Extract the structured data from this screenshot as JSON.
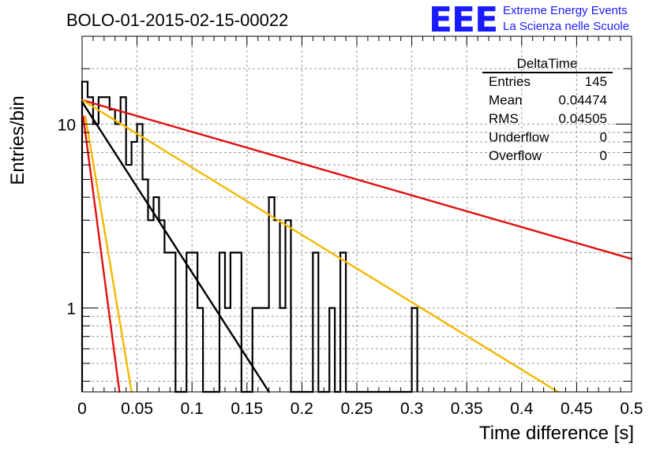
{
  "title": "BOLO-01-2015-02-15-00022",
  "logo": {
    "mark": "EEE",
    "line1": "Extreme Energy Events",
    "line2": "La Scienza nelle Scuole",
    "color": "#1a1aff"
  },
  "stats_box": {
    "title": "DeltaTime",
    "rows": [
      {
        "label": "Entries",
        "value": "145"
      },
      {
        "label": "Mean",
        "value": "0.04474"
      },
      {
        "label": "RMS",
        "value": "0.04505"
      },
      {
        "label": "Underflow",
        "value": "0"
      },
      {
        "label": "Overflow",
        "value": "0"
      }
    ]
  },
  "chart_data": {
    "type": "histogram",
    "xlabel": "Time difference [s]",
    "ylabel": "Entries/bin",
    "xlim": [
      0,
      0.5
    ],
    "ylim": [
      0.35,
      30
    ],
    "y_scale": "log",
    "grid": true,
    "x_ticks": [
      "0",
      "0.05",
      "0.1",
      "0.15",
      "0.2",
      "0.25",
      "0.3",
      "0.35",
      "0.4",
      "0.45",
      "0.5"
    ],
    "y_ticks": [
      "1",
      "10"
    ],
    "bin_width": 0.005,
    "bin_values": [
      17,
      14,
      10,
      14,
      14,
      12,
      10,
      14,
      6,
      8,
      10,
      5,
      3,
      4,
      3,
      2,
      2,
      0,
      0,
      2,
      2,
      1,
      0,
      0,
      0,
      2,
      1,
      2,
      2,
      0,
      0,
      1,
      1,
      1,
      4,
      3,
      1,
      3,
      0,
      0,
      0,
      0,
      2,
      0,
      0,
      1,
      0,
      2,
      0,
      0,
      0,
      0,
      0,
      0,
      0,
      0,
      0,
      0,
      0,
      0,
      1
    ],
    "histogram_color": "#000000",
    "fits": [
      {
        "points": [
          [
            0,
            13.2
          ],
          [
            0.17,
            0.35
          ]
        ],
        "color": "#000000"
      },
      {
        "points": [
          [
            0,
            13.5
          ],
          [
            0.5,
            1.85
          ]
        ],
        "color": "#e01010"
      },
      {
        "points": [
          [
            0,
            13.5
          ],
          [
            0.433,
            0.35
          ]
        ],
        "color": "#f5b800"
      },
      {
        "points": [
          [
            0.001,
            11
          ],
          [
            0.034,
            0.35
          ]
        ],
        "color": "#e01010"
      },
      {
        "points": [
          [
            0.003,
            11
          ],
          [
            0.045,
            0.35
          ]
        ],
        "color": "#f5b800"
      }
    ]
  }
}
